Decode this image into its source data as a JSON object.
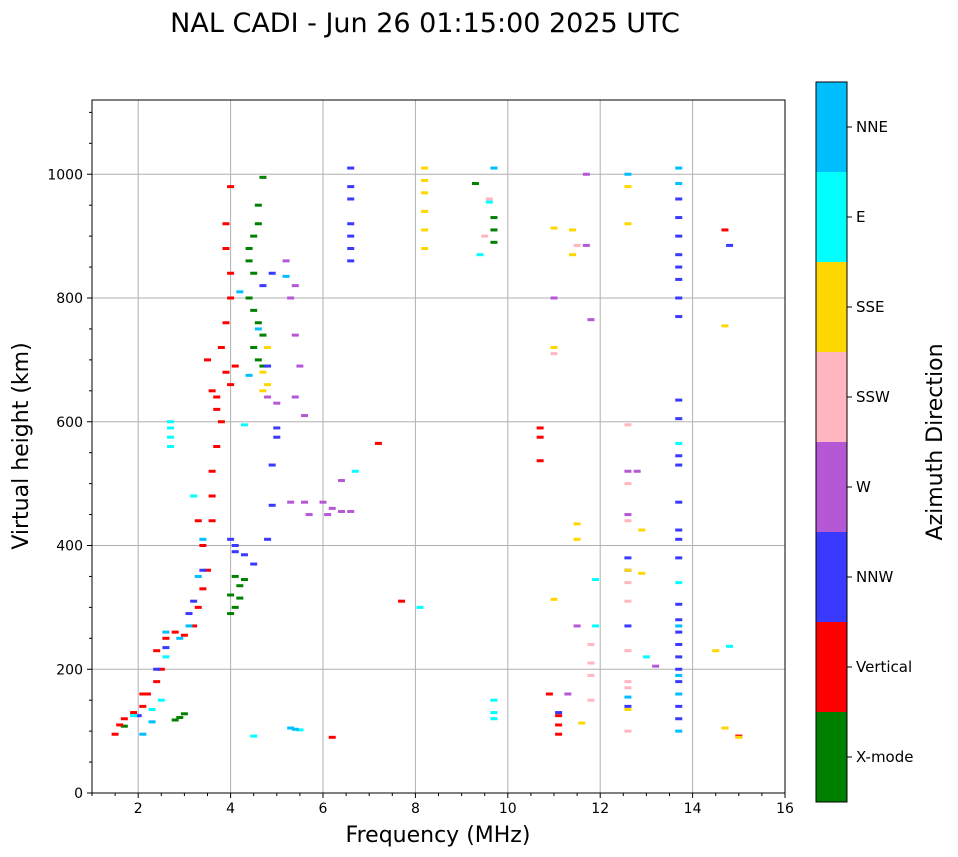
{
  "chart_data": {
    "type": "scatter",
    "title": "NAL CADI - Jun 26 01:15:00 2025 UTC",
    "xlabel": "Frequency (MHz)",
    "ylabel": "Virtual height (km)",
    "xlim": [
      1,
      16
    ],
    "ylim": [
      0,
      1120
    ],
    "xticks": [
      2,
      4,
      6,
      8,
      10,
      12,
      14,
      16
    ],
    "yticks": [
      0,
      200,
      400,
      600,
      800,
      1000
    ],
    "xtick_labels": [
      "2",
      "4",
      "6",
      "8",
      "10",
      "12",
      "14",
      "16"
    ],
    "ytick_labels": [
      "0",
      "200",
      "400",
      "600",
      "800",
      "1000"
    ],
    "grid": true,
    "colorbar": {
      "label": "Azimuth Direction",
      "categories": [
        {
          "name": "X-mode",
          "color": "#008000"
        },
        {
          "name": "Vertical",
          "color": "#ff0000"
        },
        {
          "name": "NNW",
          "color": "#3a3aff"
        },
        {
          "name": "W",
          "color": "#b657d6"
        },
        {
          "name": "SSW",
          "color": "#ffb6c1"
        },
        {
          "name": "SSE",
          "color": "#ffd700"
        },
        {
          "name": "E",
          "color": "#00ffff"
        },
        {
          "name": "NNE",
          "color": "#00bfff"
        }
      ]
    },
    "series": [
      {
        "name": "X-mode",
        "points": [
          [
            2.8,
            118
          ],
          [
            2.9,
            122
          ],
          [
            3.0,
            128
          ],
          [
            4.0,
            290
          ],
          [
            4.1,
            300
          ],
          [
            4.0,
            320
          ],
          [
            4.2,
            335
          ],
          [
            4.1,
            350
          ],
          [
            4.3,
            345
          ],
          [
            4.2,
            315
          ],
          [
            4.4,
            800
          ],
          [
            4.5,
            780
          ],
          [
            4.6,
            760
          ],
          [
            4.7,
            740
          ],
          [
            4.5,
            720
          ],
          [
            4.6,
            700
          ],
          [
            4.7,
            690
          ],
          [
            4.4,
            880
          ],
          [
            4.5,
            900
          ],
          [
            4.6,
            920
          ],
          [
            4.4,
            860
          ],
          [
            4.7,
            995
          ],
          [
            4.6,
            950
          ],
          [
            4.5,
            840
          ],
          [
            9.3,
            985
          ],
          [
            9.7,
            930
          ],
          [
            9.7,
            910
          ],
          [
            9.7,
            890
          ],
          [
            1.7,
            108
          ]
        ]
      },
      {
        "name": "Vertical",
        "points": [
          [
            1.5,
            95
          ],
          [
            1.6,
            110
          ],
          [
            1.7,
            120
          ],
          [
            1.9,
            130
          ],
          [
            2.1,
            140
          ],
          [
            2.2,
            160
          ],
          [
            2.4,
            180
          ],
          [
            2.5,
            200
          ],
          [
            2.4,
            230
          ],
          [
            2.6,
            250
          ],
          [
            2.8,
            260
          ],
          [
            3.0,
            255
          ],
          [
            3.2,
            270
          ],
          [
            3.3,
            300
          ],
          [
            3.4,
            330
          ],
          [
            3.5,
            360
          ],
          [
            3.4,
            400
          ],
          [
            3.6,
            440
          ],
          [
            3.6,
            480
          ],
          [
            3.6,
            520
          ],
          [
            3.7,
            560
          ],
          [
            3.8,
            600
          ],
          [
            3.7,
            640
          ],
          [
            3.9,
            680
          ],
          [
            3.8,
            720
          ],
          [
            3.9,
            760
          ],
          [
            4.0,
            800
          ],
          [
            4.0,
            840
          ],
          [
            3.9,
            880
          ],
          [
            3.9,
            920
          ],
          [
            4.0,
            980
          ],
          [
            3.6,
            650
          ],
          [
            3.5,
            700
          ],
          [
            3.7,
            620
          ],
          [
            3.3,
            440
          ],
          [
            2.1,
            160
          ],
          [
            6.2,
            90
          ],
          [
            7.7,
            310
          ],
          [
            7.2,
            565
          ],
          [
            10.7,
            590
          ],
          [
            10.7,
            575
          ],
          [
            10.7,
            537
          ],
          [
            10.9,
            160
          ],
          [
            11.1,
            95
          ],
          [
            11.1,
            110
          ],
          [
            11.1,
            125
          ],
          [
            14.7,
            910
          ],
          [
            15.0,
            92
          ],
          [
            4.1,
            690
          ],
          [
            4.0,
            660
          ]
        ]
      },
      {
        "name": "NNW",
        "points": [
          [
            2.0,
            125
          ],
          [
            2.4,
            200
          ],
          [
            2.6,
            235
          ],
          [
            3.1,
            290
          ],
          [
            3.2,
            310
          ],
          [
            3.4,
            360
          ],
          [
            4.1,
            400
          ],
          [
            4.1,
            390
          ],
          [
            4.3,
            385
          ],
          [
            4.5,
            370
          ],
          [
            4.0,
            410
          ],
          [
            4.9,
            465
          ],
          [
            4.9,
            530
          ],
          [
            5.0,
            575
          ],
          [
            5.0,
            590
          ],
          [
            4.8,
            410
          ],
          [
            4.7,
            820
          ],
          [
            4.9,
            840
          ],
          [
            4.8,
            690
          ],
          [
            6.6,
            1010
          ],
          [
            6.6,
            980
          ],
          [
            6.6,
            960
          ],
          [
            6.6,
            920
          ],
          [
            6.6,
            900
          ],
          [
            6.6,
            880
          ],
          [
            6.6,
            860
          ],
          [
            11.1,
            130
          ],
          [
            12.6,
            380
          ],
          [
            12.6,
            360
          ],
          [
            12.6,
            270
          ],
          [
            12.6,
            140
          ],
          [
            13.7,
            960
          ],
          [
            13.7,
            930
          ],
          [
            13.7,
            900
          ],
          [
            13.7,
            870
          ],
          [
            13.7,
            850
          ],
          [
            13.7,
            830
          ],
          [
            13.7,
            800
          ],
          [
            13.7,
            770
          ],
          [
            13.7,
            635
          ],
          [
            13.7,
            605
          ],
          [
            13.7,
            545
          ],
          [
            13.7,
            530
          ],
          [
            13.7,
            470
          ],
          [
            13.7,
            425
          ],
          [
            13.7,
            410
          ],
          [
            13.7,
            380
          ],
          [
            13.7,
            305
          ],
          [
            13.7,
            280
          ],
          [
            13.7,
            260
          ],
          [
            13.7,
            240
          ],
          [
            13.7,
            220
          ],
          [
            13.7,
            200
          ],
          [
            13.7,
            180
          ],
          [
            13.7,
            140
          ],
          [
            13.7,
            120
          ],
          [
            14.8,
            885
          ]
        ]
      },
      {
        "name": "W",
        "points": [
          [
            5.2,
            860
          ],
          [
            5.4,
            820
          ],
          [
            5.3,
            800
          ],
          [
            5.4,
            740
          ],
          [
            5.5,
            690
          ],
          [
            5.4,
            640
          ],
          [
            5.6,
            610
          ],
          [
            5.0,
            630
          ],
          [
            4.8,
            640
          ],
          [
            5.3,
            470
          ],
          [
            5.6,
            470
          ],
          [
            6.0,
            470
          ],
          [
            6.2,
            460
          ],
          [
            6.4,
            455
          ],
          [
            6.6,
            455
          ],
          [
            6.4,
            505
          ],
          [
            6.1,
            450
          ],
          [
            5.7,
            450
          ],
          [
            11.7,
            885
          ],
          [
            11.5,
            270
          ],
          [
            11.3,
            160
          ],
          [
            12.6,
            520
          ],
          [
            12.8,
            520
          ],
          [
            12.6,
            450
          ],
          [
            13.2,
            205
          ],
          [
            11.0,
            800
          ],
          [
            11.8,
            765
          ],
          [
            11.7,
            1000
          ]
        ]
      },
      {
        "name": "SSW",
        "points": [
          [
            9.6,
            960
          ],
          [
            9.5,
            900
          ],
          [
            11.0,
            710
          ],
          [
            12.6,
            595
          ],
          [
            12.6,
            500
          ],
          [
            12.6,
            440
          ],
          [
            12.6,
            340
          ],
          [
            12.6,
            310
          ],
          [
            12.6,
            230
          ],
          [
            12.6,
            180
          ],
          [
            12.6,
            170
          ],
          [
            12.6,
            100
          ],
          [
            11.8,
            240
          ],
          [
            11.8,
            210
          ],
          [
            11.8,
            190
          ],
          [
            11.8,
            150
          ],
          [
            11.5,
            885
          ]
        ]
      },
      {
        "name": "SSE",
        "points": [
          [
            4.7,
            680
          ],
          [
            4.8,
            660
          ],
          [
            4.7,
            650
          ],
          [
            4.8,
            720
          ],
          [
            8.2,
            1010
          ],
          [
            8.2,
            990
          ],
          [
            8.2,
            970
          ],
          [
            8.2,
            940
          ],
          [
            8.2,
            910
          ],
          [
            8.2,
            880
          ],
          [
            11.0,
            720
          ],
          [
            11.0,
            913
          ],
          [
            11.4,
            910
          ],
          [
            11.4,
            870
          ],
          [
            11.5,
            435
          ],
          [
            11.5,
            410
          ],
          [
            11.0,
            313
          ],
          [
            11.6,
            113
          ],
          [
            12.6,
            980
          ],
          [
            12.6,
            920
          ],
          [
            12.9,
            425
          ],
          [
            12.9,
            355
          ],
          [
            12.6,
            360
          ],
          [
            12.6,
            135
          ],
          [
            14.5,
            230
          ],
          [
            14.7,
            755
          ],
          [
            14.7,
            105
          ],
          [
            15.0,
            90
          ]
        ]
      },
      {
        "name": "E",
        "points": [
          [
            1.9,
            125
          ],
          [
            2.3,
            135
          ],
          [
            2.5,
            150
          ],
          [
            2.6,
            220
          ],
          [
            2.7,
            560
          ],
          [
            2.7,
            575
          ],
          [
            2.7,
            590
          ],
          [
            2.7,
            600
          ],
          [
            3.2,
            480
          ],
          [
            6.7,
            520
          ],
          [
            8.1,
            300
          ],
          [
            9.6,
            955
          ],
          [
            9.4,
            870
          ],
          [
            9.7,
            150
          ],
          [
            9.7,
            130
          ],
          [
            9.7,
            120
          ],
          [
            11.9,
            270
          ],
          [
            11.9,
            345
          ],
          [
            13.0,
            220
          ],
          [
            13.7,
            565
          ],
          [
            13.7,
            340
          ],
          [
            14.8,
            237
          ],
          [
            4.5,
            92
          ],
          [
            5.5,
            102
          ],
          [
            4.3,
            595
          ]
        ]
      },
      {
        "name": "NNE",
        "points": [
          [
            2.1,
            95
          ],
          [
            2.3,
            115
          ],
          [
            2.6,
            260
          ],
          [
            2.9,
            250
          ],
          [
            3.1,
            270
          ],
          [
            3.3,
            350
          ],
          [
            3.4,
            410
          ],
          [
            4.2,
            810
          ],
          [
            4.4,
            675
          ],
          [
            4.6,
            750
          ],
          [
            5.2,
            835
          ],
          [
            5.3,
            105
          ],
          [
            5.4,
            103
          ],
          [
            9.7,
            1010
          ],
          [
            12.6,
            1000
          ],
          [
            12.6,
            155
          ],
          [
            13.7,
            1010
          ],
          [
            13.7,
            985
          ],
          [
            13.7,
            270
          ],
          [
            13.7,
            190
          ],
          [
            13.7,
            160
          ],
          [
            13.7,
            100
          ]
        ]
      }
    ]
  }
}
